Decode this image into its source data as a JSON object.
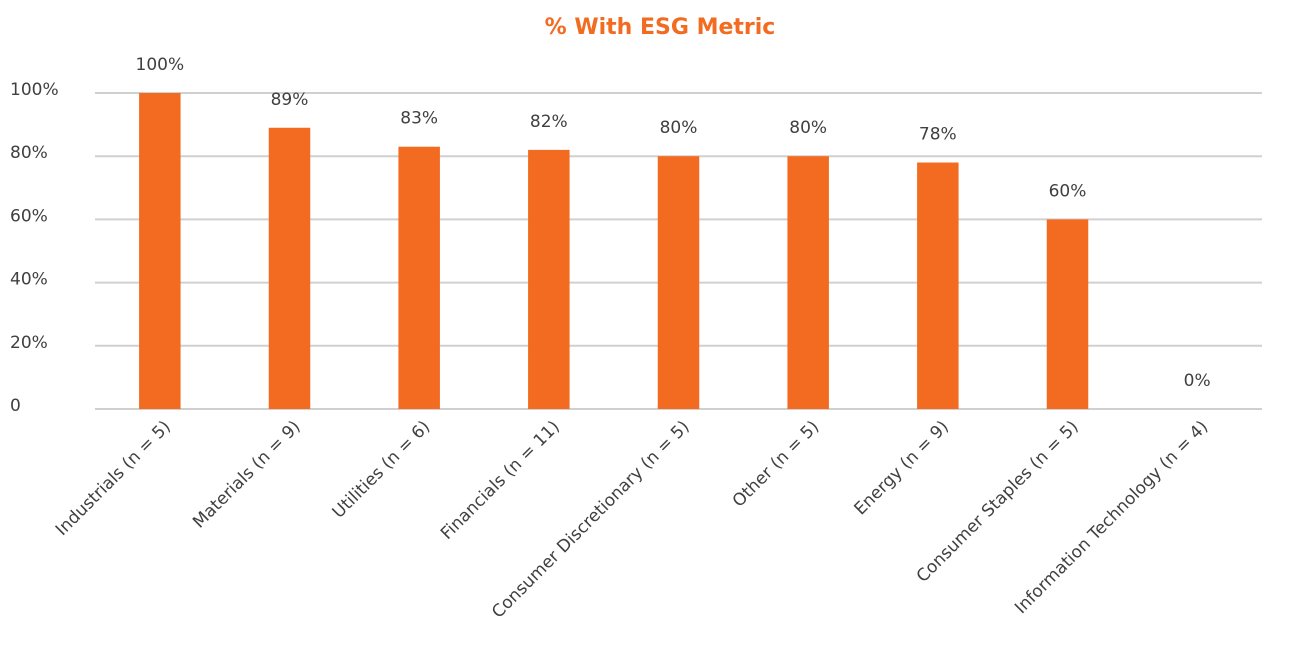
{
  "chart_data": {
    "type": "bar",
    "title": "% With ESG Metric",
    "categories": [
      "Industrials (n = 5)",
      "Materials (n = 9)",
      "Utilities (n = 6)",
      "Financials (n = 11)",
      "Consumer Discretionary (n = 5)",
      "Other (n = 5)",
      "Energy (n = 9)",
      "Consumer Staples (n = 5)",
      "Information Technology (n = 4)"
    ],
    "values": [
      100,
      89,
      83,
      82,
      80,
      80,
      78,
      60,
      0
    ],
    "value_labels": [
      "100%",
      "89%",
      "83%",
      "82%",
      "80%",
      "80%",
      "78%",
      "60%",
      "0%"
    ],
    "color": "#f26b21",
    "ylim": [
      0,
      100
    ],
    "yticks": [
      0,
      {
        "value": 20,
        "label": "20%"
      },
      {
        "value": 40,
        "label": "40%"
      },
      {
        "value": 60,
        "label": "60%"
      },
      {
        "value": 80,
        "label": "80%"
      },
      {
        "value": 100,
        "label": "100%"
      }
    ],
    "grid": true
  }
}
